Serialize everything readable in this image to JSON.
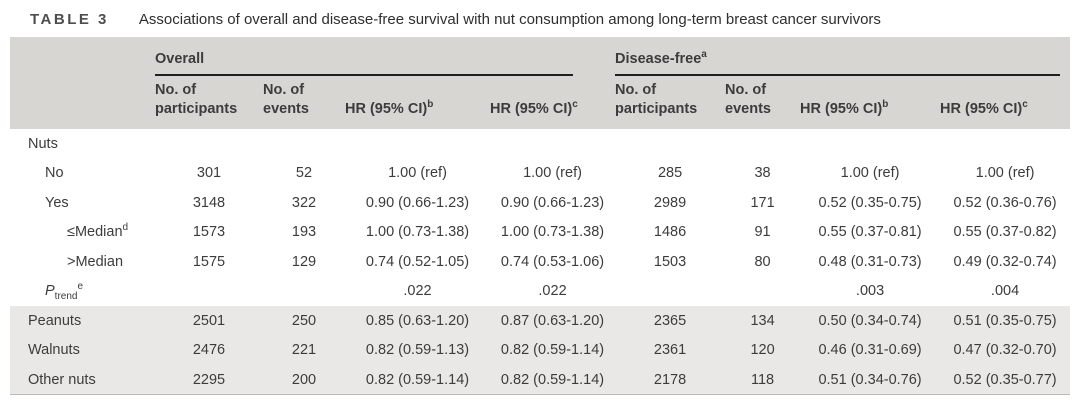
{
  "title": {
    "label": "TABLE 3",
    "text": "Associations of overall and disease-free survival with nut consumption among long-term breast cancer survivors"
  },
  "table": {
    "groups": [
      {
        "label": "Overall",
        "sup": ""
      },
      {
        "label": "Disease-free",
        "sup": "a"
      }
    ],
    "columns": [
      {
        "line1": "No. of",
        "line2": "participants",
        "sup": ""
      },
      {
        "line1": "No. of",
        "line2": "events",
        "sup": ""
      },
      {
        "line1": "HR (95% CI)",
        "line2": "",
        "sup": "b"
      },
      {
        "line1": "HR (95% CI)",
        "line2": "",
        "sup": "c"
      }
    ],
    "rows": [
      {
        "label": "Nuts",
        "indent": 0,
        "shaded": false,
        "cells": [
          "",
          "",
          "",
          "",
          "",
          "",
          "",
          ""
        ]
      },
      {
        "label": "No",
        "indent": 1,
        "shaded": false,
        "cells": [
          "301",
          "52",
          "1.00 (ref)",
          "1.00 (ref)",
          "285",
          "38",
          "1.00 (ref)",
          "1.00 (ref)"
        ]
      },
      {
        "label": "Yes",
        "indent": 1,
        "shaded": false,
        "cells": [
          "3148",
          "322",
          "0.90 (0.66-1.23)",
          "0.90 (0.66-1.23)",
          "2989",
          "171",
          "0.52 (0.35-0.75)",
          "0.52 (0.36-0.76)"
        ]
      },
      {
        "label": "≤Median",
        "sup": "d",
        "indent": 2,
        "shaded": false,
        "cells": [
          "1573",
          "193",
          "1.00 (0.73-1.38)",
          "1.00 (0.73-1.38)",
          "1486",
          "91",
          "0.55 (0.37-0.81)",
          "0.55 (0.37-0.82)"
        ]
      },
      {
        "label": ">Median",
        "indent": 2,
        "shaded": false,
        "cells": [
          "1575",
          "129",
          "0.74 (0.52-1.05)",
          "0.74 (0.53-1.06)",
          "1503",
          "80",
          "0.48 (0.31-0.73)",
          "0.49 (0.32-0.74)"
        ]
      },
      {
        "italic": "P",
        "sub": "trend",
        "sup": "e",
        "label": "",
        "indent": 1,
        "shaded": false,
        "cells": [
          "",
          "",
          ".022",
          ".022",
          "",
          "",
          ".003",
          ".004"
        ]
      },
      {
        "label": "Peanuts",
        "indent": 0,
        "shaded": true,
        "cells": [
          "2501",
          "250",
          "0.85 (0.63-1.20)",
          "0.87 (0.63-1.20)",
          "2365",
          "134",
          "0.50 (0.34-0.74)",
          "0.51 (0.35-0.75)"
        ]
      },
      {
        "label": "Walnuts",
        "indent": 0,
        "shaded": true,
        "cells": [
          "2476",
          "221",
          "0.82 (0.59-1.13)",
          "0.82 (0.59-1.14)",
          "2361",
          "120",
          "0.46 (0.31-0.69)",
          "0.47 (0.32-0.70)"
        ]
      },
      {
        "label": "Other nuts",
        "indent": 0,
        "shaded": true,
        "cells": [
          "2295",
          "200",
          "0.82 (0.59-1.14)",
          "0.82 (0.59-1.14)",
          "2178",
          "118",
          "0.51 (0.34-0.76)",
          "0.52 (0.35-0.77)"
        ]
      }
    ]
  },
  "colors": {
    "header_bg": "#d8d6d3",
    "shaded_bg": "#eae8e6",
    "rule": "#1f1f1f",
    "text": "#3c3c3c",
    "title_label": "#4e4e4e",
    "bottom_border": "#bdbab7"
  }
}
